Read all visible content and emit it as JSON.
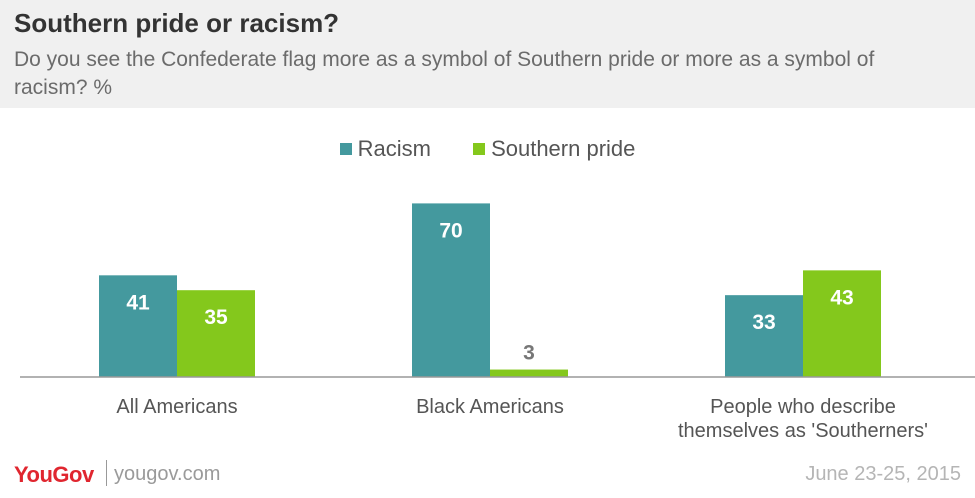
{
  "header": {
    "title": "Southern pride or racism?",
    "subtitle": "Do you see the Confederate flag more as a symbol of Southern pride or more as a symbol of racism? %"
  },
  "colors": {
    "racism": "#44999e",
    "southern_pride": "#84c81c"
  },
  "chart_data": {
    "type": "bar",
    "categories": [
      [
        "All Americans"
      ],
      [
        "Black Americans"
      ],
      [
        "People who describe",
        "themselves as 'Southerners'"
      ]
    ],
    "series": [
      {
        "name": "Racism",
        "values": [
          41,
          70,
          33
        ]
      },
      {
        "name": "Southern pride",
        "values": [
          35,
          3,
          43
        ]
      }
    ],
    "ylim": [
      0,
      70
    ],
    "legend": "top-center",
    "grid": false
  },
  "footer": {
    "logo": "YouGov",
    "site": "yougov.com",
    "date": "June 23-25, 2015"
  }
}
